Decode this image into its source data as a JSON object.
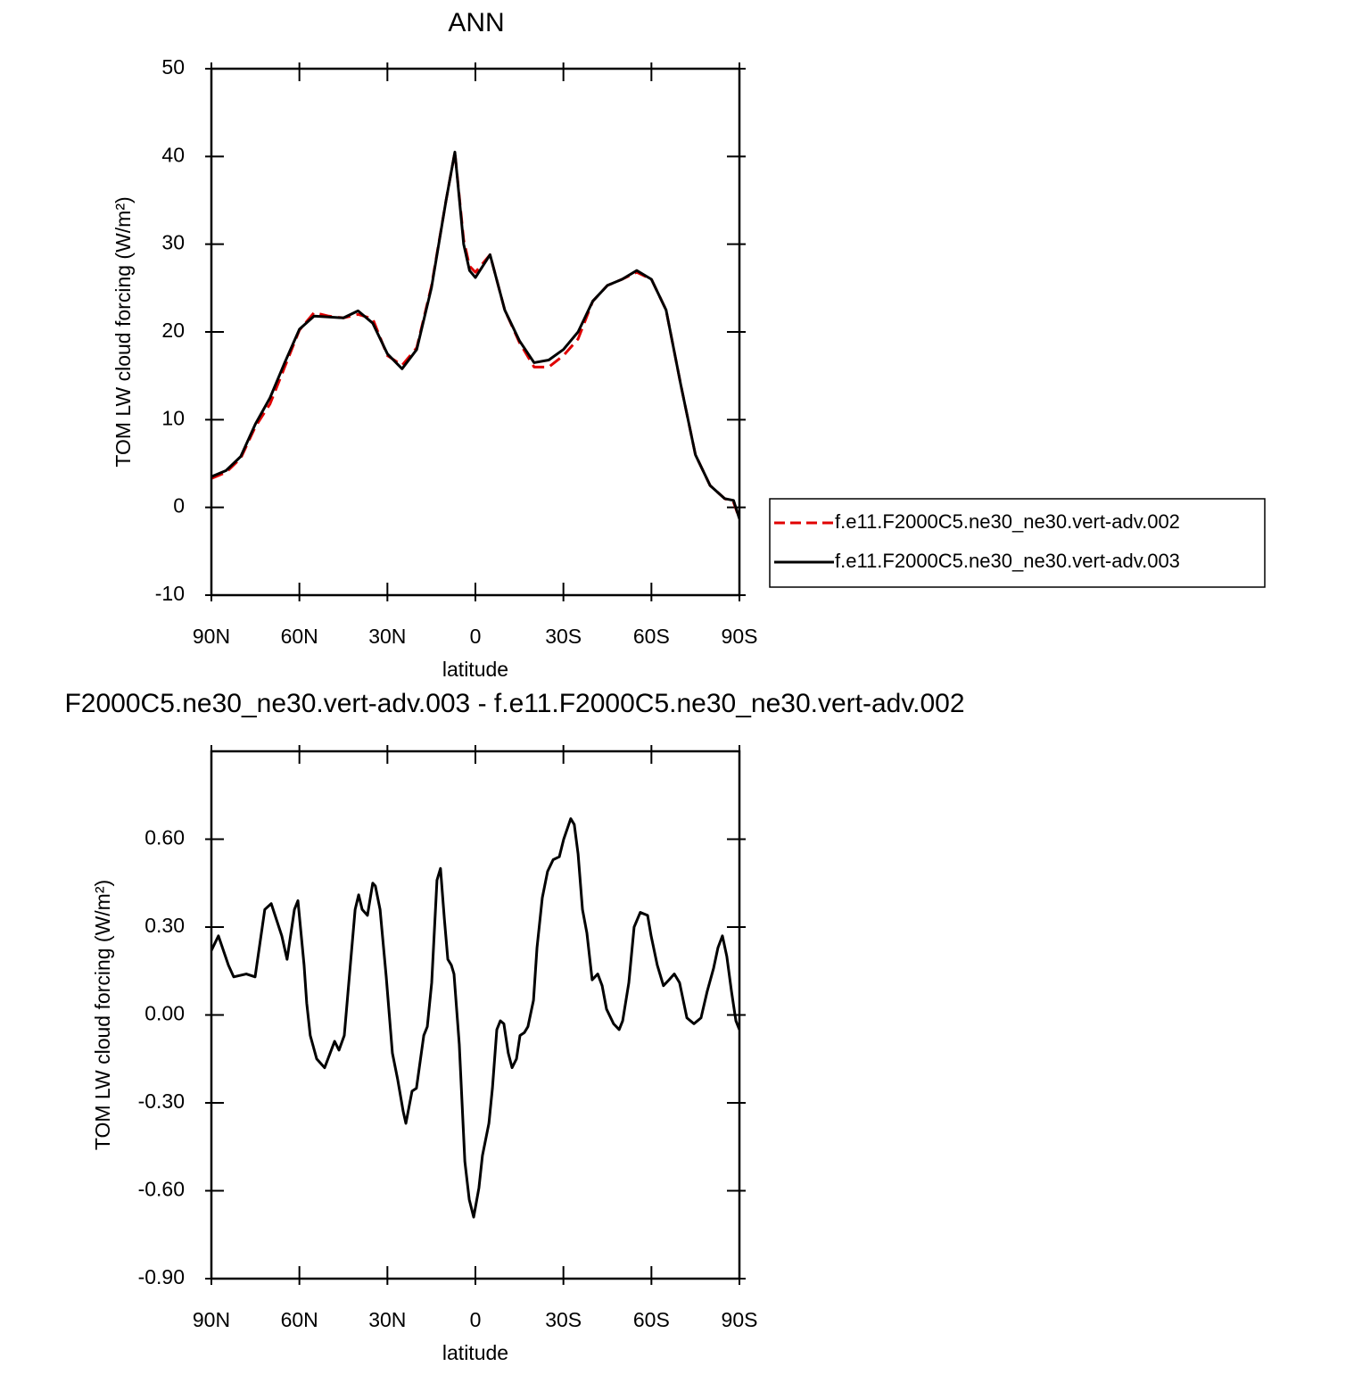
{
  "chart_data": [
    {
      "type": "line",
      "title": "ANN",
      "xlabel": "latitude",
      "ylabel": "TOM LW cloud forcing (W/m²)",
      "xlim": [
        90,
        -90
      ],
      "ylim": [
        -10,
        50
      ],
      "xticks": [
        {
          "value": 90,
          "label": "90N"
        },
        {
          "value": 60,
          "label": "60N"
        },
        {
          "value": 30,
          "label": "30N"
        },
        0,
        {
          "value": -30,
          "label": "30S"
        },
        {
          "value": -60,
          "label": "60S"
        },
        {
          "value": -90,
          "label": "90S"
        }
      ],
      "yticks": [
        -10,
        0,
        10,
        20,
        30,
        40,
        50
      ],
      "legend": "right",
      "x": [
        90,
        85,
        80,
        75,
        70,
        65,
        60,
        55,
        50,
        45,
        40,
        35,
        30,
        25,
        20,
        15,
        10,
        7,
        4,
        2,
        0,
        -5,
        -10,
        -15,
        -20,
        -25,
        -30,
        -35,
        -40,
        -45,
        -50,
        -55,
        -60,
        -65,
        -70,
        -75,
        -80,
        -85,
        -88,
        -90
      ],
      "series": [
        {
          "name": "f.e11.F2000C5.ne30_ne30.vert-adv.002",
          "color": "#e00000",
          "line_style": "dashed",
          "values": [
            3.3,
            4.0,
            5.6,
            9.2,
            11.8,
            16,
            20.2,
            22.2,
            21.8,
            21.6,
            22,
            21.5,
            17.3,
            16.2,
            18.2,
            25.2,
            35,
            40.5,
            30.5,
            27.5,
            26.8,
            28.8,
            22.5,
            18.8,
            16,
            16,
            17.3,
            19.2,
            23.5,
            25.3,
            26,
            26.8,
            26,
            22.5,
            14,
            6,
            2.5,
            1,
            0.6,
            -1.3
          ]
        },
        {
          "name": "f.e11.F2000C5.ne30_ne30.vert-adv.003",
          "color": "#000000",
          "line_style": "solid",
          "values": [
            3.5,
            4.2,
            5.8,
            9.5,
            12.5,
            16.5,
            20.3,
            21.8,
            21.7,
            21.6,
            22.4,
            21,
            17.5,
            15.8,
            18,
            25,
            35,
            40.5,
            30,
            27,
            26.2,
            28.8,
            22.5,
            19,
            16.5,
            16.8,
            18,
            20,
            23.5,
            25.3,
            26,
            27,
            26,
            22.5,
            14,
            6,
            2.5,
            1,
            0.8,
            -1.3
          ]
        }
      ]
    },
    {
      "type": "line",
      "title": "F2000C5.ne30_ne30.vert-adv.003 - f.e11.F2000C5.ne30_ne30.vert-adv.002",
      "xlabel": "latitude",
      "ylabel": "TOM LW cloud forcing (W/m²)",
      "xlim": [
        90,
        -90
      ],
      "ylim": [
        -0.9,
        0.9
      ],
      "xticks": [
        {
          "value": 90,
          "label": "90N"
        },
        {
          "value": 60,
          "label": "60N"
        },
        {
          "value": 30,
          "label": "30N"
        },
        0,
        {
          "value": -30,
          "label": "30S"
        },
        {
          "value": -60,
          "label": "60S"
        },
        {
          "value": -90,
          "label": "90S"
        }
      ],
      "yticks": [
        {
          "value": -0.9,
          "label": "-0.90"
        },
        {
          "value": -0.6,
          "label": "-0.60"
        },
        {
          "value": -0.3,
          "label": "-0.30"
        },
        {
          "value": 0,
          "label": "0.00"
        },
        {
          "value": 0.3,
          "label": "0.30"
        },
        {
          "value": 0.6,
          "label": "0.60"
        }
      ],
      "x": [
        90,
        87.6,
        84.2,
        82.4,
        78.1,
        75.1,
        71.8,
        69.6,
        66.0,
        64.2,
        61.7,
        60.5,
        58.4,
        57.5,
        56.3,
        54.1,
        51.4,
        48.0,
        46.5,
        44.7,
        42.9,
        41.0,
        39.8,
        38.6,
        36.8,
        35.0,
        34.1,
        32.5,
        30.4,
        28.3,
        26.5,
        24.6,
        23.7,
        21.6,
        20.1,
        17.6,
        16.4,
        14.9,
        13.1,
        11.9,
        10.6,
        9.4,
        8.2,
        7.3,
        5.5,
        3.6,
        2.1,
        0.6,
        -1.2,
        -2.4,
        -4.6,
        -5.8,
        -7.3,
        -8.5,
        -9.7,
        -11.2,
        -12.5,
        -14.0,
        -15.2,
        -16.7,
        -17.9,
        -19.8,
        -21.0,
        -22.8,
        -24.6,
        -26.5,
        -28.6,
        -30.1,
        -32.5,
        -33.7,
        -35.0,
        -36.5,
        -38.0,
        -39.8,
        -41.7,
        -43.2,
        -44.7,
        -47.1,
        -49.0,
        -50.2,
        -52.3,
        -54.1,
        -56.2,
        -58.7,
        -59.9,
        -62.0,
        -64.1,
        -66.0,
        -67.8,
        -69.6,
        -72.1,
        -74.5,
        -76.9,
        -79.0,
        -81.2,
        -82.7,
        -84.2,
        -85.7,
        -87.3,
        -88.8,
        -90
      ],
      "series": [
        {
          "color": "#000000",
          "line_style": "solid",
          "values": [
            0.22,
            0.27,
            0.17,
            0.13,
            0.14,
            0.13,
            0.36,
            0.38,
            0.27,
            0.19,
            0.36,
            0.39,
            0.17,
            0.04,
            -0.07,
            -0.15,
            -0.18,
            -0.09,
            -0.12,
            -0.07,
            0.14,
            0.36,
            0.41,
            0.36,
            0.34,
            0.45,
            0.44,
            0.36,
            0.13,
            -0.13,
            -0.22,
            -0.33,
            -0.37,
            -0.26,
            -0.25,
            -0.07,
            -0.04,
            0.11,
            0.46,
            0.5,
            0.33,
            0.19,
            0.17,
            0.14,
            -0.1,
            -0.5,
            -0.63,
            -0.69,
            -0.59,
            -0.48,
            -0.37,
            -0.25,
            -0.05,
            -0.02,
            -0.03,
            -0.13,
            -0.18,
            -0.15,
            -0.07,
            -0.06,
            -0.04,
            0.05,
            0.23,
            0.4,
            0.49,
            0.53,
            0.54,
            0.6,
            0.67,
            0.65,
            0.55,
            0.36,
            0.28,
            0.12,
            0.14,
            0.1,
            0.02,
            -0.03,
            -0.05,
            -0.02,
            0.11,
            0.3,
            0.35,
            0.34,
            0.27,
            0.17,
            0.1,
            0.12,
            0.14,
            0.11,
            -0.01,
            -0.03,
            -0.01,
            0.08,
            0.16,
            0.23,
            0.27,
            0.2,
            0.08,
            -0.02,
            -0.05
          ]
        }
      ]
    }
  ]
}
